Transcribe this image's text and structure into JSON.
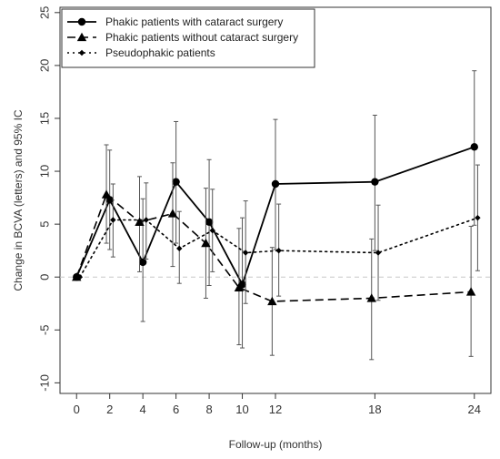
{
  "chart_data": {
    "type": "line",
    "xlabel": "Follow-up (months)",
    "ylabel": "Change in BCVA (letters) and 95% IC",
    "xlim": [
      -1,
      25
    ],
    "ylim": [
      -11,
      25.5
    ],
    "x_ticks": [
      0,
      2,
      4,
      6,
      8,
      10,
      12,
      18,
      24
    ],
    "y_ticks": [
      -10,
      -5,
      0,
      5,
      10,
      15,
      20,
      25
    ],
    "reference_line": 0,
    "legend_position": "top-left",
    "grid": false,
    "series": [
      {
        "name": "Phakic patients with cataract surgery",
        "line_style": "solid",
        "marker": "circle",
        "points": [
          {
            "x": 0,
            "y": 0,
            "lo": 0,
            "hi": 0
          },
          {
            "x": 2,
            "y": 7.3,
            "lo": 2.6,
            "hi": 12.0
          },
          {
            "x": 4,
            "y": 1.4,
            "lo": -4.2,
            "hi": 7.4
          },
          {
            "x": 6,
            "y": 9.0,
            "lo": 3.2,
            "hi": 14.7
          },
          {
            "x": 8,
            "y": 5.2,
            "lo": -0.8,
            "hi": 11.1
          },
          {
            "x": 10,
            "y": -0.7,
            "lo": -6.7,
            "hi": 5.6
          },
          {
            "x": 12,
            "y": 8.8,
            "lo": 2.6,
            "hi": 14.9
          },
          {
            "x": 18,
            "y": 9.0,
            "lo": 2.5,
            "hi": 15.3
          },
          {
            "x": 24,
            "y": 12.3,
            "lo": 4.9,
            "hi": 19.5
          }
        ]
      },
      {
        "name": "Phakic patients without cataract surgery",
        "line_style": "dashed",
        "marker": "triangle",
        "points": [
          {
            "x": 0,
            "y": 0,
            "lo": 0,
            "hi": 0
          },
          {
            "x": 1.8,
            "y": 7.8,
            "lo": 3.2,
            "hi": 12.5
          },
          {
            "x": 3.8,
            "y": 5.2,
            "lo": 0.5,
            "hi": 9.5
          },
          {
            "x": 5.8,
            "y": 6.0,
            "lo": 1.0,
            "hi": 10.8
          },
          {
            "x": 7.8,
            "y": 3.2,
            "lo": -2.0,
            "hi": 8.4
          },
          {
            "x": 9.8,
            "y": -1.0,
            "lo": -6.4,
            "hi": 4.6
          },
          {
            "x": 11.8,
            "y": -2.3,
            "lo": -7.4,
            "hi": 2.8
          },
          {
            "x": 17.8,
            "y": -2.0,
            "lo": -7.8,
            "hi": 3.6
          },
          {
            "x": 23.8,
            "y": -1.4,
            "lo": -7.5,
            "hi": 4.8
          }
        ]
      },
      {
        "name": "Pseudophakic patients",
        "line_style": "dotted",
        "marker": "small-diamond",
        "points": [
          {
            "x": 0.2,
            "y": 0,
            "lo": 0,
            "hi": 0
          },
          {
            "x": 2.2,
            "y": 5.4,
            "lo": 1.9,
            "hi": 8.8
          },
          {
            "x": 4.2,
            "y": 5.4,
            "lo": 1.7,
            "hi": 8.9
          },
          {
            "x": 6.2,
            "y": 2.7,
            "lo": -0.6,
            "hi": 6.2
          },
          {
            "x": 8.2,
            "y": 4.4,
            "lo": 0.5,
            "hi": 8.3
          },
          {
            "x": 10.2,
            "y": 2.3,
            "lo": -2.5,
            "hi": 7.2
          },
          {
            "x": 12.2,
            "y": 2.5,
            "lo": -1.8,
            "hi": 6.9
          },
          {
            "x": 18.2,
            "y": 2.3,
            "lo": -2.2,
            "hi": 6.8
          },
          {
            "x": 24.2,
            "y": 5.6,
            "lo": 0.6,
            "hi": 10.6
          }
        ]
      }
    ]
  }
}
